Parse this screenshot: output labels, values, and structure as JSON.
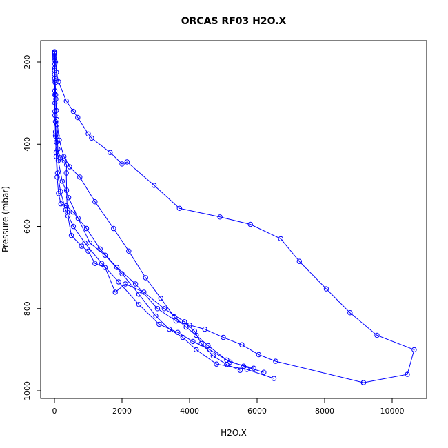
{
  "chart_data": {
    "type": "line",
    "title": "ORCAS RF03 H2O.X",
    "xlabel": "H2O.X",
    "ylabel": "Pressure (mbar)",
    "xlim": [
      -400,
      11000
    ],
    "ylim": [
      1000,
      150
    ],
    "y_reversed": true,
    "grid": false,
    "line_color": "#0000ff",
    "marker": "open-circle",
    "xticks": [
      0,
      2000,
      4000,
      6000,
      8000,
      10000
    ],
    "xtick_labels": [
      "0",
      "2000",
      "4000",
      "6000",
      "8000",
      "10000"
    ],
    "yticks": [
      200,
      400,
      600,
      800,
      1000
    ],
    "ytick_labels": [
      "200",
      "400",
      "600",
      "800",
      "1000"
    ],
    "series": [
      {
        "values": [
          [
            6200,
            955
          ],
          [
            5600,
            940
          ],
          [
            5100,
            925
          ],
          [
            4550,
            890
          ],
          [
            4200,
            865
          ],
          [
            3900,
            845
          ],
          [
            3550,
            820
          ],
          [
            3150,
            775
          ],
          [
            2700,
            725
          ],
          [
            2200,
            660
          ],
          [
            1750,
            605
          ],
          [
            1200,
            540
          ],
          [
            750,
            480
          ],
          [
            450,
            455
          ],
          [
            280,
            430
          ],
          [
            140,
            390
          ],
          [
            70,
            340
          ],
          [
            40,
            290
          ],
          [
            20,
            250
          ],
          [
            8,
            215
          ],
          [
            5,
            185
          ],
          [
            3,
            175
          ]
        ]
      },
      {
        "values": [
          [
            5900,
            945
          ],
          [
            5200,
            930
          ],
          [
            4600,
            900
          ],
          [
            4100,
            880
          ],
          [
            3650,
            858
          ],
          [
            3100,
            838
          ],
          [
            2500,
            790
          ],
          [
            1900,
            735
          ],
          [
            1400,
            690
          ],
          [
            900,
            640
          ],
          [
            560,
            600
          ],
          [
            330,
            560
          ],
          [
            180,
            515
          ],
          [
            90,
            470
          ],
          [
            50,
            420
          ],
          [
            30,
            370
          ],
          [
            15,
            320
          ],
          [
            10,
            270
          ],
          [
            5,
            220
          ],
          [
            2,
            180
          ]
        ]
      },
      {
        "values": [
          [
            6500,
            970
          ],
          [
            5700,
            948
          ],
          [
            4800,
            935
          ],
          [
            4200,
            900
          ],
          [
            3800,
            870
          ],
          [
            3400,
            850
          ],
          [
            3000,
            818
          ],
          [
            2500,
            765
          ],
          [
            2000,
            715
          ],
          [
            1500,
            670
          ],
          [
            1050,
            640
          ],
          [
            700,
            580
          ],
          [
            420,
            530
          ],
          [
            230,
            490
          ],
          [
            110,
            440
          ],
          [
            60,
            395
          ],
          [
            30,
            345
          ],
          [
            15,
            300
          ],
          [
            8,
            240
          ],
          [
            4,
            195
          ]
        ]
      },
      {
        "values": [
          [
            9150,
            980
          ],
          [
            10450,
            960
          ],
          [
            10650,
            900
          ],
          [
            9550,
            865
          ],
          [
            8750,
            810
          ],
          [
            8050,
            752
          ],
          [
            7250,
            685
          ],
          [
            6700,
            630
          ],
          [
            5800,
            595
          ],
          [
            4900,
            577
          ],
          [
            3700,
            556
          ],
          [
            2950,
            500
          ],
          [
            2150,
            443
          ],
          [
            2000,
            448
          ],
          [
            1650,
            420
          ],
          [
            1100,
            385
          ],
          [
            1000,
            375
          ],
          [
            690,
            335
          ],
          [
            560,
            320
          ],
          [
            350,
            295
          ],
          [
            120,
            248
          ],
          [
            60,
            225
          ],
          [
            30,
            200
          ],
          [
            10,
            176
          ]
        ]
      },
      {
        "values": [
          [
            9150,
            980
          ],
          [
            6550,
            928
          ],
          [
            6050,
            912
          ],
          [
            5550,
            888
          ],
          [
            5000,
            870
          ],
          [
            4450,
            850
          ],
          [
            4000,
            840
          ],
          [
            3600,
            830
          ],
          [
            3050,
            800
          ],
          [
            2400,
            740
          ],
          [
            1850,
            700
          ],
          [
            1350,
            655
          ],
          [
            950,
            605
          ],
          [
            550,
            565
          ],
          [
            350,
            550
          ],
          [
            190,
            545
          ],
          [
            120,
            520
          ],
          [
            80,
            480
          ],
          [
            50,
            430
          ],
          [
            30,
            380
          ],
          [
            15,
            330
          ],
          [
            8,
            280
          ],
          [
            4,
            230
          ],
          [
            2,
            190
          ]
        ]
      },
      {
        "values": [
          [
            5500,
            950
          ],
          [
            5100,
            936
          ],
          [
            4700,
            915
          ],
          [
            4350,
            885
          ],
          [
            4150,
            855
          ],
          [
            3850,
            832
          ],
          [
            3250,
            800
          ],
          [
            2650,
            760
          ],
          [
            2100,
            740
          ],
          [
            1800,
            760
          ],
          [
            1500,
            700
          ],
          [
            1200,
            690
          ],
          [
            1000,
            660
          ],
          [
            800,
            648
          ],
          [
            500,
            622
          ],
          [
            400,
            575
          ],
          [
            380,
            565
          ],
          [
            360,
            512
          ],
          [
            350,
            470
          ],
          [
            360,
            450
          ],
          [
            290,
            440
          ],
          [
            170,
            433
          ],
          [
            100,
            412
          ],
          [
            80,
            380
          ],
          [
            70,
            352
          ],
          [
            55,
            318
          ],
          [
            35,
            280
          ],
          [
            20,
            245
          ],
          [
            10,
            205
          ],
          [
            5,
            178
          ]
        ]
      }
    ]
  }
}
